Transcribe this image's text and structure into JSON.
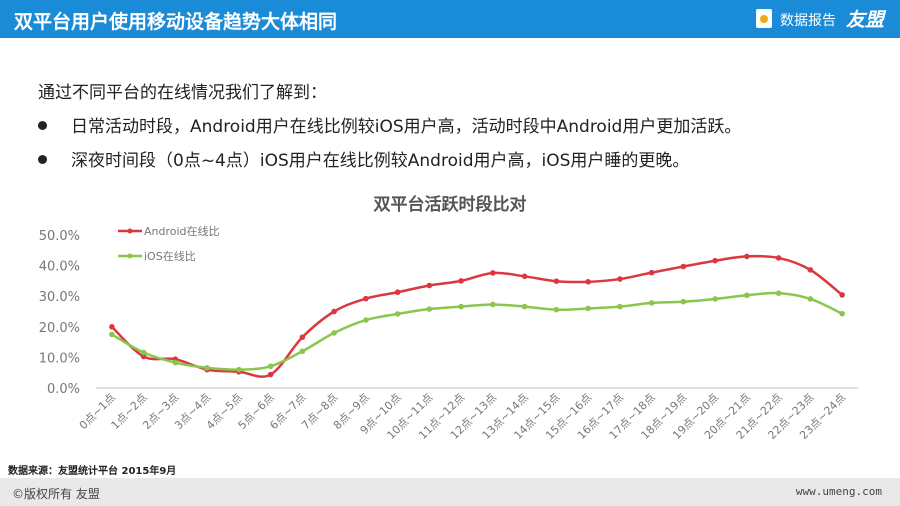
{
  "header": {
    "title": "双平台用户使用移动设备趋势大体相同",
    "brand_report": "数据报告",
    "brand_logo": "友盟",
    "accent": "#1a8bd6"
  },
  "intro": "通过不同平台的在线情况我们了解到：",
  "bullets": [
    "日常活动时段，Android用户在线比例较iOS用户高，活动时段中Android用户更加活跃。",
    "深夜时间段（0点~4点）iOS用户在线比例较Android用户高，iOS用户睡的更晚。"
  ],
  "chart_data": {
    "type": "line",
    "title": "双平台活跃时段比对",
    "categories": [
      "0点~1点",
      "1点~2点",
      "2点~3点",
      "3点~4点",
      "4点~5点",
      "5点~6点",
      "6点~7点",
      "7点~8点",
      "8点~9点",
      "9点~10点",
      "10点~11点",
      "11点~12点",
      "12点~13点",
      "13点~14点",
      "14点~15点",
      "15点~16点",
      "16点~17点",
      "17点~18点",
      "18点~19点",
      "19点~20点",
      "20点~21点",
      "21点~22点",
      "22点~23点",
      "23点~24点"
    ],
    "series": [
      {
        "name": "Android在线比",
        "color": "#d9393e",
        "values": [
          20.0,
          10.3,
          9.4,
          6.0,
          5.3,
          4.4,
          16.6,
          25.0,
          29.2,
          31.3,
          33.5,
          35.0,
          37.6,
          36.5,
          34.9,
          34.7,
          35.6,
          37.7,
          39.7,
          41.6,
          43.0,
          42.5,
          38.6,
          30.4
        ]
      },
      {
        "name": "iOS在线比",
        "color": "#8ac64e",
        "values": [
          17.5,
          11.6,
          8.3,
          6.6,
          6.0,
          7.1,
          12.0,
          18.0,
          22.2,
          24.2,
          25.8,
          26.6,
          27.3,
          26.6,
          25.6,
          26.0,
          26.6,
          27.8,
          28.2,
          29.1,
          30.3,
          31.0,
          29.1,
          24.3
        ]
      }
    ],
    "ylim": [
      0,
      50
    ],
    "yticks": [
      "0.0%",
      "10.0%",
      "20.0%",
      "30.0%",
      "40.0%",
      "50.0%"
    ],
    "grid": false,
    "legend": "top-left"
  },
  "source": "数据来源：友盟统计平台  2015年9月",
  "footer": {
    "copyright": "©版权所有  友盟",
    "url": "www.umeng.com"
  }
}
